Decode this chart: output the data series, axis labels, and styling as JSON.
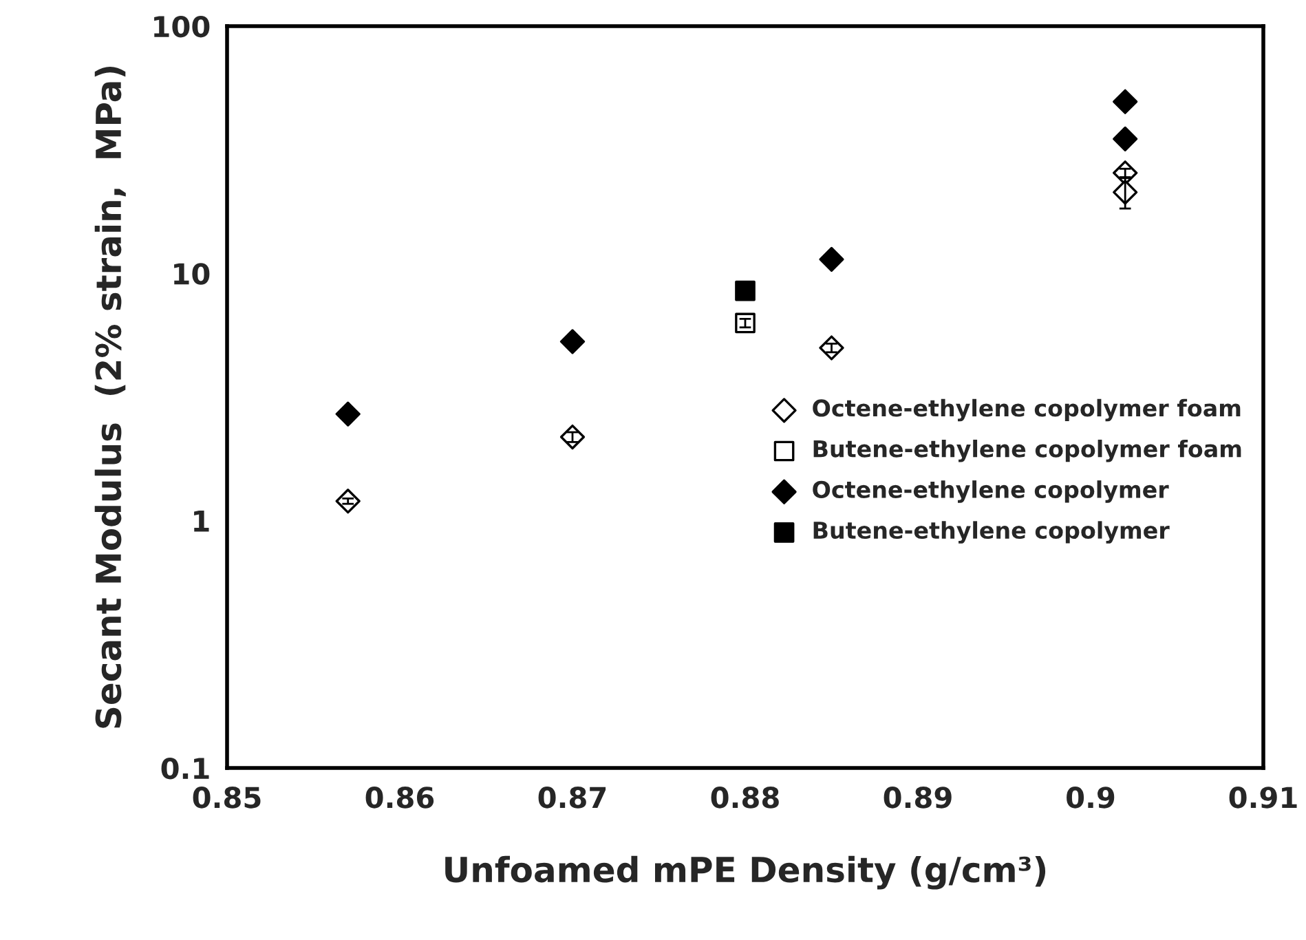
{
  "chart_data": {
    "type": "scatter",
    "xlabel": "Unfoamed mPE Density (g/cm³)",
    "ylabel": "Secant Modulus  (2% strain,  MPa)",
    "log": "y",
    "xlim": [
      0.85,
      0.91
    ],
    "xticks": [
      0.85,
      0.86,
      0.87,
      0.88,
      0.89,
      0.9,
      0.91
    ],
    "ylim": [
      0.1,
      100
    ],
    "yticks": [
      0.1,
      1,
      10,
      100
    ],
    "grid": false,
    "legend": "right",
    "series": [
      {
        "name": "Octene-ethylene copolymer foam",
        "color": "#ffffff",
        "marker": "diamond",
        "x": [
          0.857,
          0.87,
          0.885,
          0.902,
          0.902
        ],
        "values": [
          1.2,
          2.18,
          5.0,
          25.5,
          21.3
        ],
        "errors": [
          0.03,
          0.1,
          0.2,
          1,
          3
        ]
      },
      {
        "name": "Butene-ethylene copolymer foam",
        "color": "#ffffff",
        "marker": "square",
        "x": [
          0.88
        ],
        "values": [
          6.3
        ],
        "errors": [
          0.25
        ]
      },
      {
        "name": "Octene-ethylene copolymer",
        "color": "#000000",
        "marker": "diamond",
        "x": [
          0.857,
          0.87,
          0.885,
          0.902,
          0.902
        ],
        "values": [
          2.7,
          5.3,
          11.4,
          49.5,
          35
        ]
      },
      {
        "name": "Butene-ethylene copolymer",
        "color": "#000000",
        "marker": "square",
        "x": [
          0.88
        ],
        "values": [
          8.5
        ]
      }
    ]
  }
}
